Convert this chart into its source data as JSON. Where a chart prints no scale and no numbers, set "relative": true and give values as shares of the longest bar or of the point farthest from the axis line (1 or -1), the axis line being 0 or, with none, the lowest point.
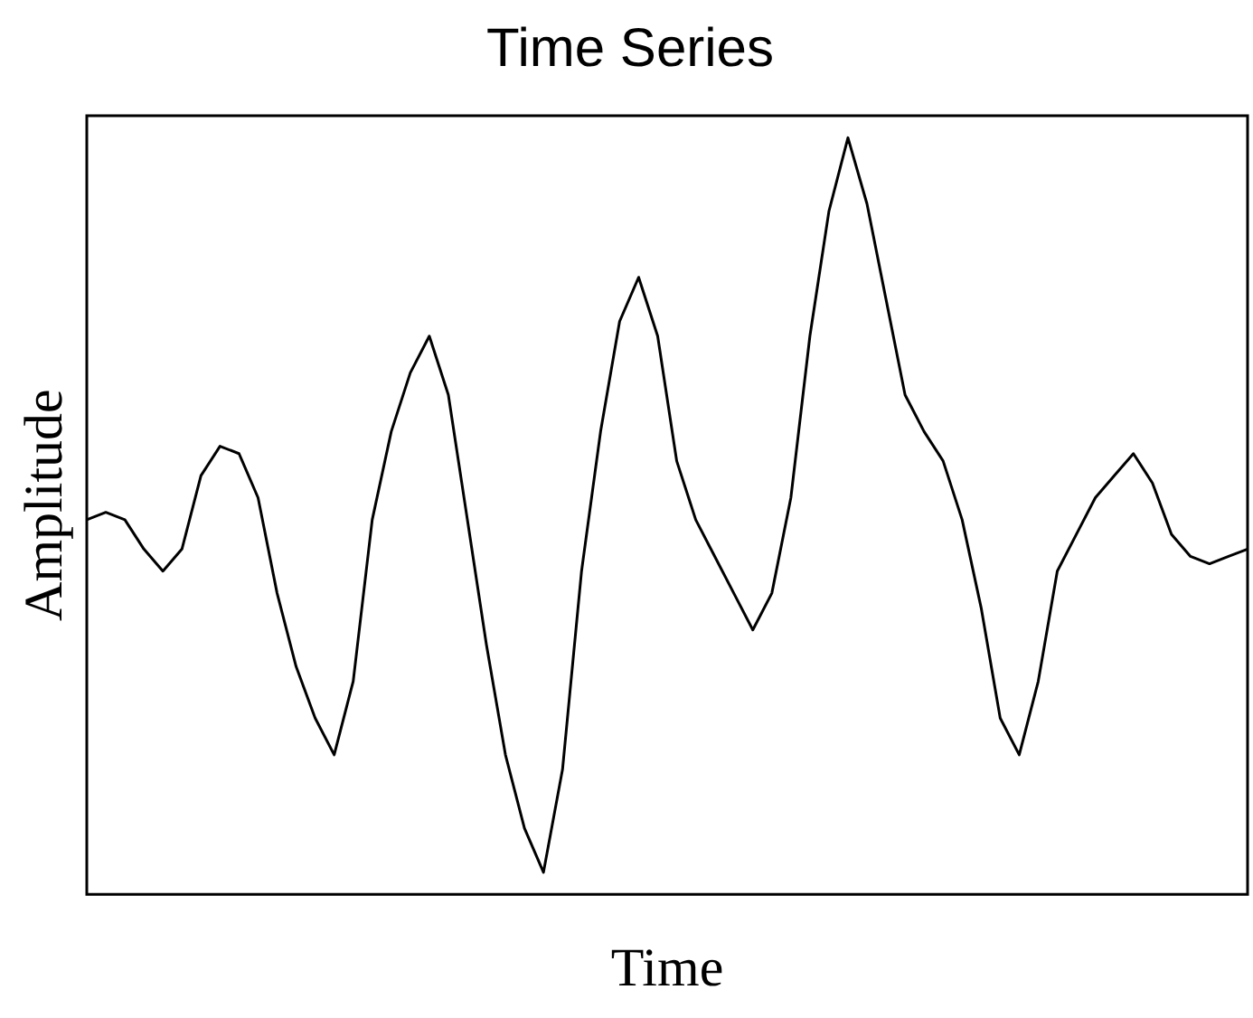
{
  "chart_data": {
    "type": "line",
    "title": "Time Series",
    "xlabel": "Time",
    "ylabel": "Amplitude",
    "relative": true,
    "grid": false,
    "legend": false,
    "marker": "none",
    "line_style": "solid",
    "categories": [
      null,
      null,
      null,
      null,
      null,
      null,
      null,
      null,
      null,
      null,
      null,
      null,
      null,
      null,
      null,
      null,
      null,
      null,
      null,
      null,
      null,
      null,
      null,
      null,
      null,
      null,
      null,
      null,
      null,
      null,
      null,
      null,
      null,
      null,
      null,
      null,
      null,
      null,
      null,
      null,
      null,
      null,
      null,
      null,
      null,
      null,
      null,
      null,
      null,
      null,
      null,
      null,
      null,
      null,
      null,
      null,
      null,
      null,
      null,
      null,
      null,
      null
    ],
    "series": [
      {
        "color": "#000000",
        "values": [
          0.48,
          0.49,
          0.48,
          0.44,
          0.41,
          0.44,
          0.54,
          0.58,
          0.57,
          0.51,
          0.38,
          0.28,
          0.21,
          0.16,
          0.26,
          0.48,
          0.6,
          0.68,
          0.73,
          0.65,
          0.48,
          0.31,
          0.16,
          0.06,
          0,
          0.14,
          0.41,
          0.6,
          0.75,
          0.81,
          0.73,
          0.56,
          0.48,
          0.43,
          0.38,
          0.33,
          0.38,
          0.51,
          0.73,
          0.9,
          1,
          0.91,
          0.78,
          0.65,
          0.6,
          0.56,
          0.48,
          0.36,
          0.21,
          0.16,
          0.26,
          0.41,
          0.46,
          0.51,
          0.54,
          0.57,
          0.53,
          0.46,
          0.43,
          0.42,
          0.43,
          0.44
        ]
      }
    ]
  }
}
